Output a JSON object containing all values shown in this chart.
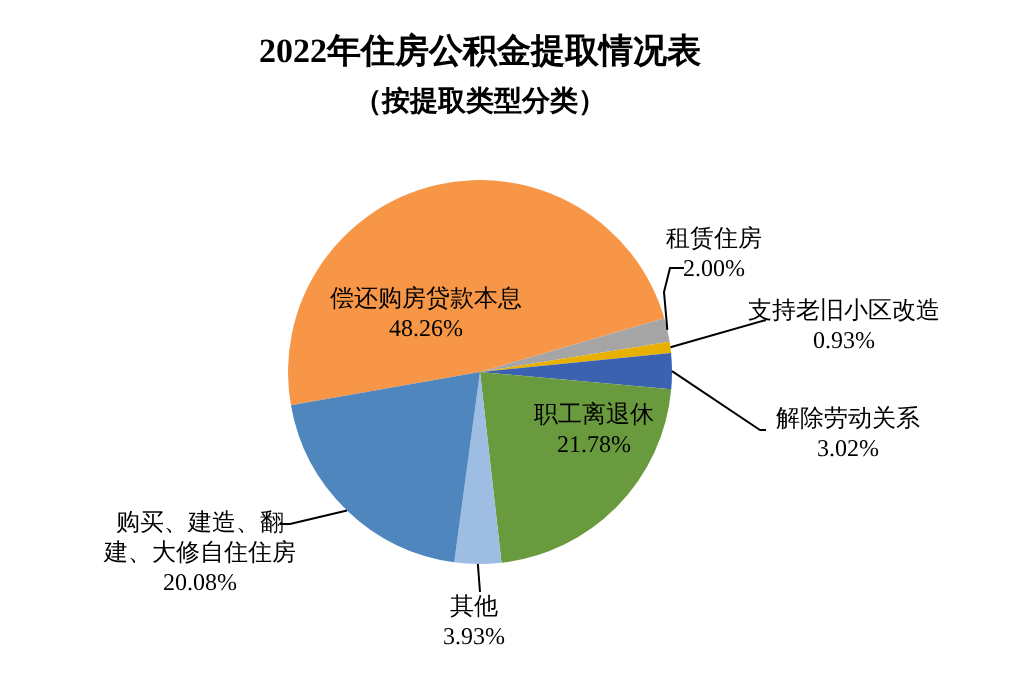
{
  "chart_data": {
    "type": "pie",
    "title": "2022年住房公积金提取情况表",
    "subtitle": "（按提取类型分类）",
    "categories": [
      "偿还购房贷款本息",
      "租赁住房",
      "支持老旧小区改造",
      "解除劳动关系",
      "职工离退休",
      "其他",
      "购买、建造、翻建、大修自住住房"
    ],
    "values": [
      48.26,
      2.0,
      0.93,
      3.02,
      21.78,
      3.93,
      20.08
    ],
    "colors": [
      "#f79646",
      "#a5a5a5",
      "#e8b000",
      "#3a62b0",
      "#6a9a3e",
      "#9dbde3",
      "#4f86be"
    ],
    "value_labels": [
      "48.26%",
      "2.00%",
      "0.93%",
      "3.02%",
      "21.78%",
      "3.93%",
      "20.08%"
    ],
    "legend": false
  }
}
